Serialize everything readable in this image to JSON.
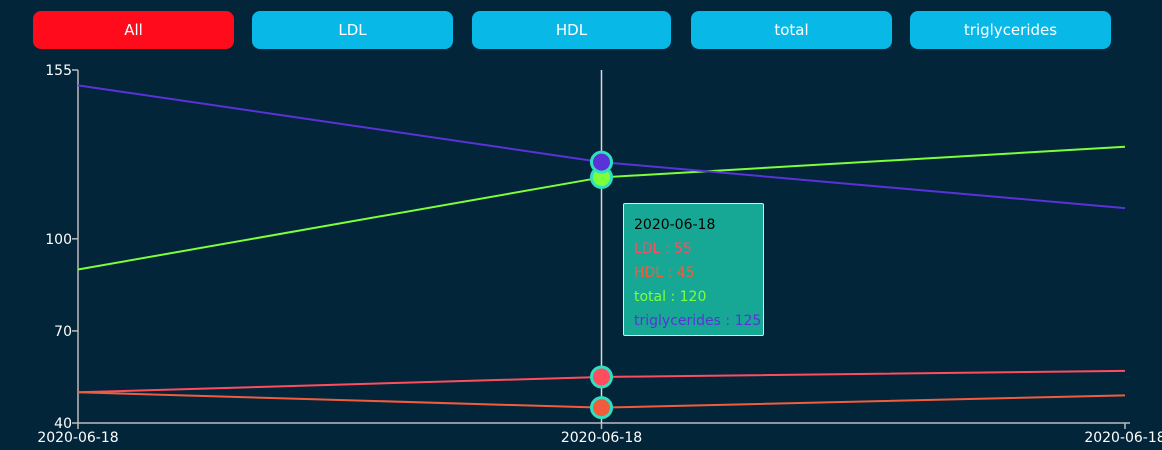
{
  "filters": [
    {
      "label": "All",
      "active": true
    },
    {
      "label": "LDL",
      "active": false
    },
    {
      "label": "HDL",
      "active": false
    },
    {
      "label": "total",
      "active": false
    },
    {
      "label": "triglycerides",
      "active": false
    }
  ],
  "colors": {
    "background": "#02253a",
    "button_active": "#ff0b1b",
    "button_inactive": "#08b9e8",
    "axis": "#bcbcbc",
    "axis_text": "#ffffff",
    "hover_ring": "#2fe0c0",
    "tooltip_bg": "#17a895"
  },
  "chart_data": {
    "type": "line",
    "x": [
      "2020-06-18",
      "2020-06-18",
      "2020-06-18"
    ],
    "ylim": [
      40,
      155
    ],
    "yticks": [
      40,
      70,
      100,
      155
    ],
    "grid": false,
    "series": [
      {
        "name": "LDL",
        "color": "#ff4d5e",
        "values": [
          50,
          55,
          57
        ]
      },
      {
        "name": "HDL",
        "color": "#f25c3d",
        "values": [
          50,
          45,
          49
        ]
      },
      {
        "name": "total",
        "color": "#7dff3a",
        "values": [
          90,
          120,
          130
        ]
      },
      {
        "name": "triglycerides",
        "color": "#5a32d8",
        "values": [
          150,
          125,
          110
        ]
      }
    ],
    "hover_index": 1,
    "tooltip": {
      "title": "2020-06-18",
      "lines": [
        {
          "text": "LDL : 55",
          "color": "#ff4d5e"
        },
        {
          "text": "HDL : 45",
          "color": "#f25c3d"
        },
        {
          "text": "total : 120",
          "color": "#7dff3a"
        },
        {
          "text": "triglycerides : 125",
          "color": "#5a32d8"
        }
      ]
    }
  }
}
